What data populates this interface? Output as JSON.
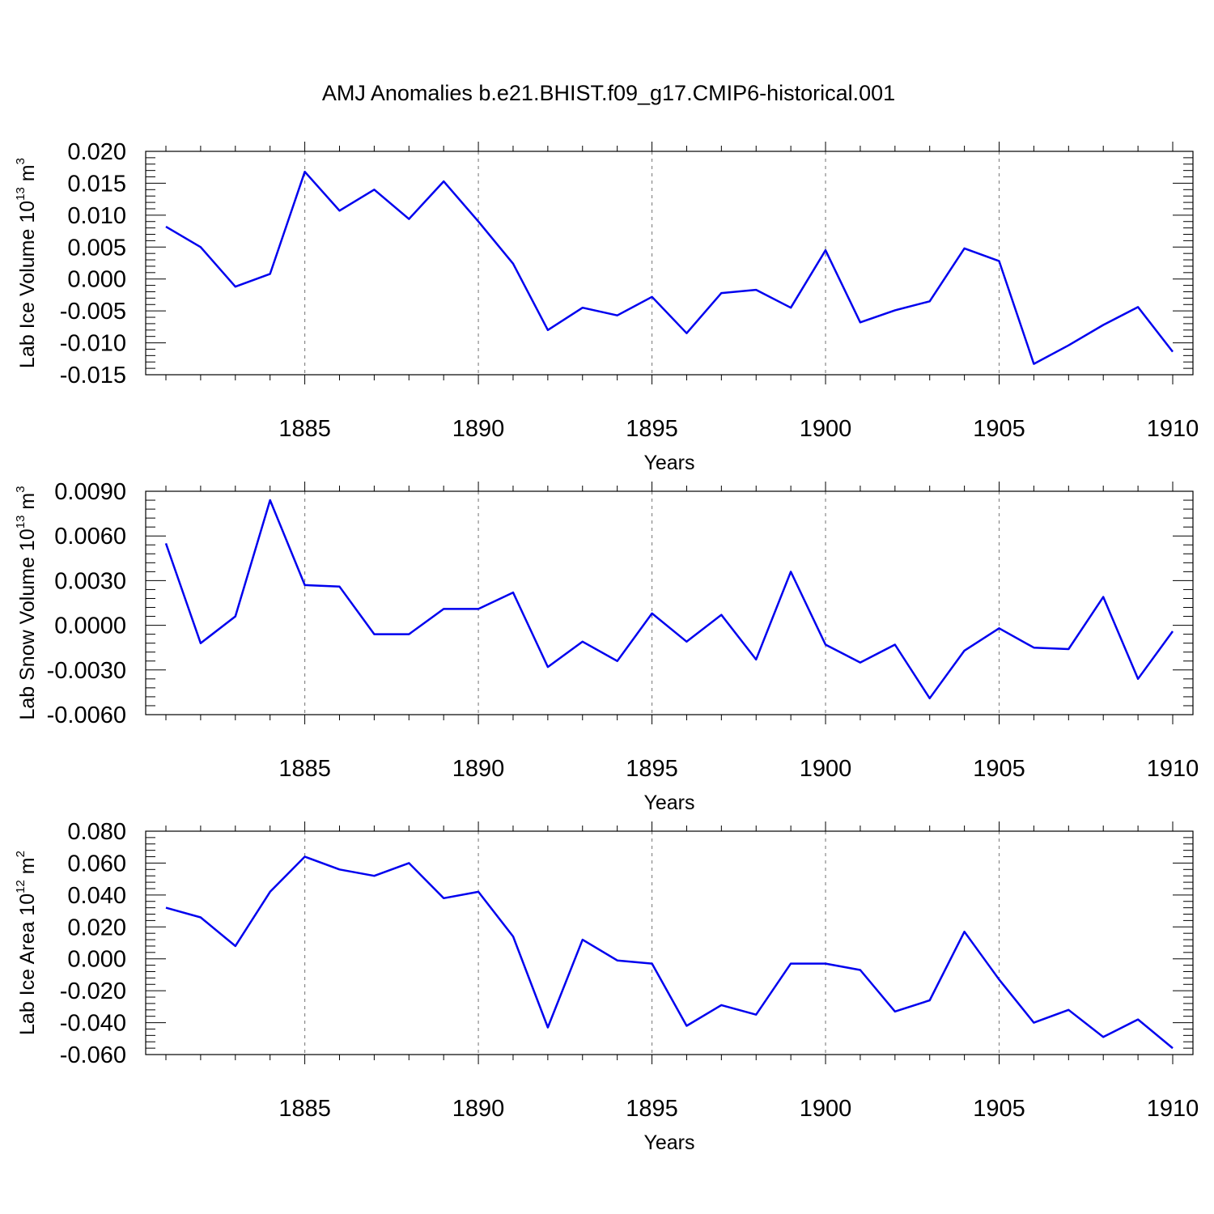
{
  "title": "AMJ Anomalies b.e21.BHIST.f09_g17.CMIP6-historical.001",
  "colors": {
    "series": "#0000ee",
    "axis": "#000000",
    "grid": "#888888"
  },
  "chart_data": [
    {
      "type": "line",
      "ylabel_main": "Lab Ice Volume 10",
      "ylabel_exp": "13",
      "ylabel_unit": "m",
      "ylabel_unit_exp": "3",
      "xlabel": "Years",
      "xlim": [
        1881,
        1910
      ],
      "ylim": [
        -0.015,
        0.02
      ],
      "xticks": [
        "1885",
        "1890",
        "1895",
        "1900",
        "1905",
        "1910"
      ],
      "yticks": [
        "0.020",
        "0.015",
        "0.010",
        "0.005",
        "0.000",
        "-0.005",
        "-0.010",
        "-0.015"
      ],
      "grid_x": true,
      "x": [
        1881,
        1882,
        1883,
        1884,
        1885,
        1886,
        1887,
        1888,
        1889,
        1890,
        1891,
        1892,
        1893,
        1894,
        1895,
        1896,
        1897,
        1898,
        1899,
        1900,
        1901,
        1902,
        1903,
        1904,
        1905,
        1906,
        1907,
        1908,
        1909,
        1910
      ],
      "values": [
        0.0082,
        0.005,
        -0.0012,
        0.0008,
        0.0168,
        0.0107,
        0.014,
        0.0094,
        0.0153,
        0.009,
        0.0024,
        -0.008,
        -0.0045,
        -0.0057,
        -0.0028,
        -0.0085,
        -0.0022,
        -0.0017,
        -0.0045,
        0.0045,
        -0.0068,
        -0.0049,
        -0.0035,
        0.0048,
        0.0028,
        -0.0133,
        -0.0104,
        -0.0072,
        -0.0044,
        -0.0114
      ]
    },
    {
      "type": "line",
      "ylabel_main": "Lab Snow Volume 10",
      "ylabel_exp": "13",
      "ylabel_unit": "m",
      "ylabel_unit_exp": "3",
      "xlabel": "Years",
      "xlim": [
        1881,
        1910
      ],
      "ylim": [
        -0.006,
        0.009
      ],
      "xticks": [
        "1885",
        "1890",
        "1895",
        "1900",
        "1905",
        "1910"
      ],
      "yticks": [
        "0.0090",
        "0.0060",
        "0.0030",
        "0.0000",
        "-0.0030",
        "-0.0060"
      ],
      "grid_x": true,
      "x": [
        1881,
        1882,
        1883,
        1884,
        1885,
        1886,
        1887,
        1888,
        1889,
        1890,
        1891,
        1892,
        1893,
        1894,
        1895,
        1896,
        1897,
        1898,
        1899,
        1900,
        1901,
        1902,
        1903,
        1904,
        1905,
        1906,
        1907,
        1908,
        1909,
        1910
      ],
      "values": [
        0.0055,
        -0.0012,
        0.0006,
        0.0084,
        0.0027,
        0.0026,
        -0.0006,
        -0.0006,
        0.0011,
        0.0011,
        0.0022,
        -0.0028,
        -0.0011,
        -0.0024,
        0.0008,
        -0.0011,
        0.0007,
        -0.0023,
        0.0036,
        -0.0013,
        -0.0025,
        -0.0013,
        -0.0049,
        -0.0017,
        -0.0002,
        -0.0015,
        -0.0016,
        0.0019,
        -0.0036,
        -0.0004
      ]
    },
    {
      "type": "line",
      "ylabel_main": "Lab Ice Area 10",
      "ylabel_exp": "12",
      "ylabel_unit": "m",
      "ylabel_unit_exp": "2",
      "xlabel": "Years",
      "xlim": [
        1881,
        1910
      ],
      "ylim": [
        -0.06,
        0.08
      ],
      "xticks": [
        "1885",
        "1890",
        "1895",
        "1900",
        "1905",
        "1910"
      ],
      "yticks": [
        "0.080",
        "0.060",
        "0.040",
        "0.020",
        "0.000",
        "-0.020",
        "-0.040",
        "-0.060"
      ],
      "grid_x": true,
      "x": [
        1881,
        1882,
        1883,
        1884,
        1885,
        1886,
        1887,
        1888,
        1889,
        1890,
        1891,
        1892,
        1893,
        1894,
        1895,
        1896,
        1897,
        1898,
        1899,
        1900,
        1901,
        1902,
        1903,
        1904,
        1905,
        1906,
        1907,
        1908,
        1909,
        1910
      ],
      "values": [
        0.032,
        0.026,
        0.008,
        0.042,
        0.064,
        0.056,
        0.052,
        0.06,
        0.038,
        0.042,
        0.014,
        -0.043,
        0.012,
        -0.001,
        -0.003,
        -0.042,
        -0.029,
        -0.035,
        -0.003,
        -0.003,
        -0.007,
        -0.033,
        -0.026,
        0.017,
        -0.013,
        -0.04,
        -0.032,
        -0.049,
        -0.038,
        -0.056
      ]
    }
  ]
}
